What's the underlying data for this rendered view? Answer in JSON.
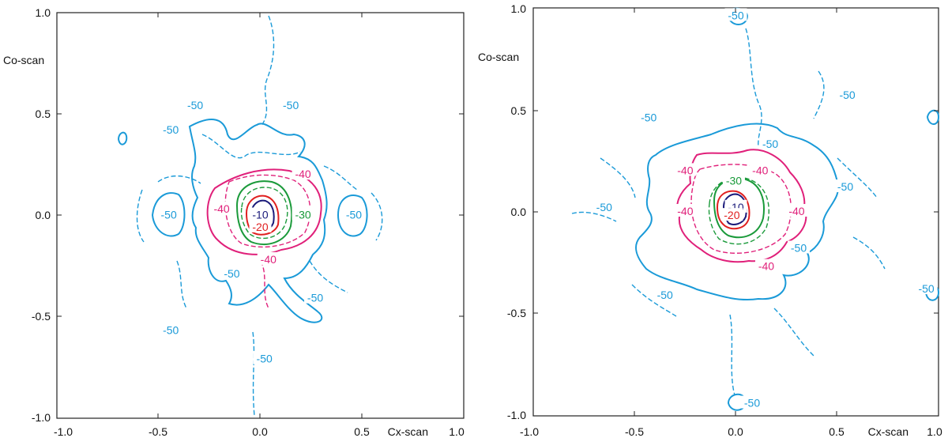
{
  "chart_data": [
    {
      "type": "contour",
      "xlabel": "Cx-scan",
      "ylabel": "Co-scan",
      "xlim": [
        -1.0,
        1.0
      ],
      "ylim": [
        -1.0,
        1.0
      ],
      "xticks": [
        "-1.0",
        "-0.5",
        "0.0",
        "0.5",
        "1.0"
      ],
      "yticks": [
        "1.0",
        "0.5",
        "0.0",
        "-0.5",
        "-1.0"
      ],
      "levels": [
        {
          "value": -10,
          "color": "#1a1a7a"
        },
        {
          "value": -20,
          "color": "#e02020"
        },
        {
          "value": -30,
          "color": "#1a9a3a"
        },
        {
          "value": -40,
          "color": "#e0207a"
        },
        {
          "value": -50,
          "color": "#1a9ad8"
        }
      ],
      "contour_labels": [
        {
          "text": "-10",
          "x": 0.0,
          "y": 0.0,
          "color": "#1a1a7a"
        },
        {
          "text": "-20",
          "x": 0.0,
          "y": -0.06,
          "color": "#e02020"
        },
        {
          "text": "-30",
          "x": 0.21,
          "y": 0.0,
          "color": "#1a9a3a"
        },
        {
          "text": "-40",
          "x": -0.19,
          "y": 0.03,
          "color": "#e0207a"
        },
        {
          "text": "-40",
          "x": 0.21,
          "y": 0.2,
          "color": "#e0207a"
        },
        {
          "text": "-40",
          "x": 0.04,
          "y": -0.22,
          "color": "#e0207a"
        },
        {
          "text": "-50",
          "x": -0.44,
          "y": 0.42,
          "color": "#1a9ad8"
        },
        {
          "text": "-50",
          "x": -0.32,
          "y": 0.54,
          "color": "#1a9ad8"
        },
        {
          "text": "-50",
          "x": 0.15,
          "y": 0.54,
          "color": "#1a9ad8"
        },
        {
          "text": "-50",
          "x": -0.45,
          "y": 0.0,
          "color": "#1a9ad8"
        },
        {
          "text": "-50",
          "x": 0.46,
          "y": 0.0,
          "color": "#1a9ad8"
        },
        {
          "text": "-50",
          "x": -0.14,
          "y": -0.29,
          "color": "#1a9ad8"
        },
        {
          "text": "-50",
          "x": 0.27,
          "y": -0.41,
          "color": "#1a9ad8"
        },
        {
          "text": "-50",
          "x": -0.44,
          "y": -0.57,
          "color": "#1a9ad8"
        },
        {
          "text": "-50",
          "x": 0.02,
          "y": -0.71,
          "color": "#1a9ad8"
        }
      ]
    },
    {
      "type": "contour",
      "xlabel": "Cx-scan",
      "ylabel": "Co-scan",
      "xlim": [
        -1.0,
        1.0
      ],
      "ylim": [
        -1.0,
        1.0
      ],
      "xticks": [
        "-1.0",
        "-0.5",
        "0.0",
        "0.5",
        "1.0"
      ],
      "yticks": [
        "1.0",
        "0.5",
        "0.0",
        "-0.5",
        "-1.0"
      ],
      "levels": [
        {
          "value": -10,
          "color": "#1a1a7a"
        },
        {
          "value": -20,
          "color": "#e02020"
        },
        {
          "value": -30,
          "color": "#1a9a3a"
        },
        {
          "value": -40,
          "color": "#e0207a"
        },
        {
          "value": -50,
          "color": "#1a9ad8"
        }
      ],
      "contour_labels": [
        {
          "text": "-10",
          "x": 0.0,
          "y": 0.02,
          "color": "#1a1a7a"
        },
        {
          "text": "-20",
          "x": -0.02,
          "y": -0.02,
          "color": "#e02020"
        },
        {
          "text": "-30",
          "x": -0.01,
          "y": 0.15,
          "color": "#1a9a3a"
        },
        {
          "text": "-40",
          "x": -0.25,
          "y": 0.2,
          "color": "#e0207a"
        },
        {
          "text": "-40",
          "x": 0.12,
          "y": 0.2,
          "color": "#e0207a"
        },
        {
          "text": "-40",
          "x": -0.25,
          "y": 0.0,
          "color": "#e0207a"
        },
        {
          "text": "-40",
          "x": 0.3,
          "y": 0.0,
          "color": "#e0207a"
        },
        {
          "text": "-40",
          "x": 0.15,
          "y": -0.27,
          "color": "#e0207a"
        },
        {
          "text": "-50",
          "x": 0.0,
          "y": 0.96,
          "color": "#1a9ad8"
        },
        {
          "text": "-50",
          "x": -0.43,
          "y": 0.46,
          "color": "#1a9ad8"
        },
        {
          "text": "-50",
          "x": 0.55,
          "y": 0.57,
          "color": "#1a9ad8"
        },
        {
          "text": "-50",
          "x": 0.17,
          "y": 0.33,
          "color": "#1a9ad8"
        },
        {
          "text": "-50",
          "x": 0.54,
          "y": 0.12,
          "color": "#1a9ad8"
        },
        {
          "text": "-50",
          "x": -0.65,
          "y": 0.02,
          "color": "#1a9ad8"
        },
        {
          "text": "-50",
          "x": 0.31,
          "y": -0.18,
          "color": "#1a9ad8"
        },
        {
          "text": "-50",
          "x": -0.35,
          "y": -0.41,
          "color": "#1a9ad8"
        },
        {
          "text": "-50",
          "x": 0.94,
          "y": -0.38,
          "color": "#1a9ad8"
        },
        {
          "text": "-50",
          "x": 0.08,
          "y": -0.94,
          "color": "#1a9ad8"
        }
      ]
    }
  ]
}
